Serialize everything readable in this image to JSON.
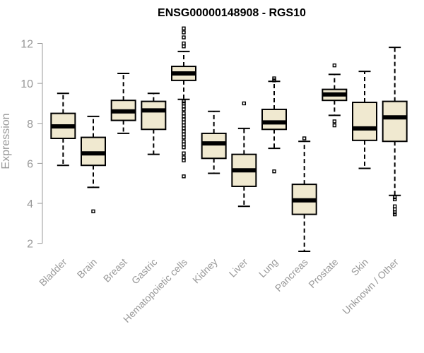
{
  "chart_data": {
    "type": "boxplot",
    "title": "ENSG00000148908 - RGS10",
    "ylabel": "Expression",
    "ylim": [
      1.6,
      12.9
    ],
    "yticks": [
      2,
      4,
      6,
      8,
      10,
      12
    ],
    "box_color": "#f0e9d0",
    "categories": [
      "Bladder",
      "Brain",
      "Breast",
      "Gastric",
      "Hematopoietic cells",
      "Kidney",
      "Liver",
      "Lung",
      "Pancreas",
      "Prostate",
      "Skin",
      "Unknown / Other"
    ],
    "series": [
      {
        "category": "Bladder",
        "whisker_low": 5.9,
        "q1": 7.25,
        "median": 7.85,
        "q3": 8.5,
        "whisker_high": 9.5,
        "outliers": []
      },
      {
        "category": "Brain",
        "whisker_low": 4.8,
        "q1": 5.9,
        "median": 6.5,
        "q3": 7.3,
        "whisker_high": 8.35,
        "outliers": [
          3.6
        ]
      },
      {
        "category": "Breast",
        "whisker_low": 7.5,
        "q1": 8.15,
        "median": 8.6,
        "q3": 9.15,
        "whisker_high": 10.5,
        "outliers": []
      },
      {
        "category": "Gastric",
        "whisker_low": 6.45,
        "q1": 7.7,
        "median": 8.65,
        "q3": 9.1,
        "whisker_high": 9.5,
        "outliers": []
      },
      {
        "category": "Hematopoietic cells",
        "whisker_low": 9.2,
        "q1": 10.15,
        "median": 10.5,
        "q3": 10.85,
        "whisker_high": 11.6,
        "outliers": [
          12.75,
          12.55,
          12.3,
          12.0,
          11.85,
          9.1,
          9.0,
          8.85,
          8.7,
          8.5,
          8.35,
          8.2,
          8.05,
          7.9,
          7.75,
          7.6,
          7.45,
          7.3,
          7.1,
          6.95,
          6.8,
          6.5,
          6.3,
          6.15,
          5.35
        ]
      },
      {
        "category": "Kidney",
        "whisker_low": 5.5,
        "q1": 6.25,
        "median": 7.0,
        "q3": 7.5,
        "whisker_high": 8.6,
        "outliers": []
      },
      {
        "category": "Liver",
        "whisker_low": 3.85,
        "q1": 4.85,
        "median": 5.65,
        "q3": 6.45,
        "whisker_high": 7.75,
        "outliers": [
          9.0
        ]
      },
      {
        "category": "Lung",
        "whisker_low": 6.75,
        "q1": 7.7,
        "median": 8.05,
        "q3": 8.7,
        "whisker_high": 10.1,
        "outliers": [
          10.25,
          10.15,
          5.6
        ]
      },
      {
        "category": "Pancreas",
        "whisker_low": 1.6,
        "q1": 3.45,
        "median": 4.15,
        "q3": 4.95,
        "whisker_high": 7.1,
        "outliers": [
          7.25
        ]
      },
      {
        "category": "Prostate",
        "whisker_low": 8.4,
        "q1": 9.15,
        "median": 9.45,
        "q3": 9.7,
        "whisker_high": 10.45,
        "outliers": [
          10.9,
          8.1,
          7.9
        ]
      },
      {
        "category": "Skin",
        "whisker_low": 5.75,
        "q1": 7.15,
        "median": 7.75,
        "q3": 9.05,
        "whisker_high": 10.6,
        "outliers": []
      },
      {
        "category": "Unknown / Other",
        "whisker_low": 4.4,
        "q1": 7.1,
        "median": 8.3,
        "q3": 9.1,
        "whisker_high": 11.8,
        "outliers": [
          4.3,
          4.2,
          3.85,
          3.7,
          3.55,
          3.45
        ]
      }
    ]
  }
}
